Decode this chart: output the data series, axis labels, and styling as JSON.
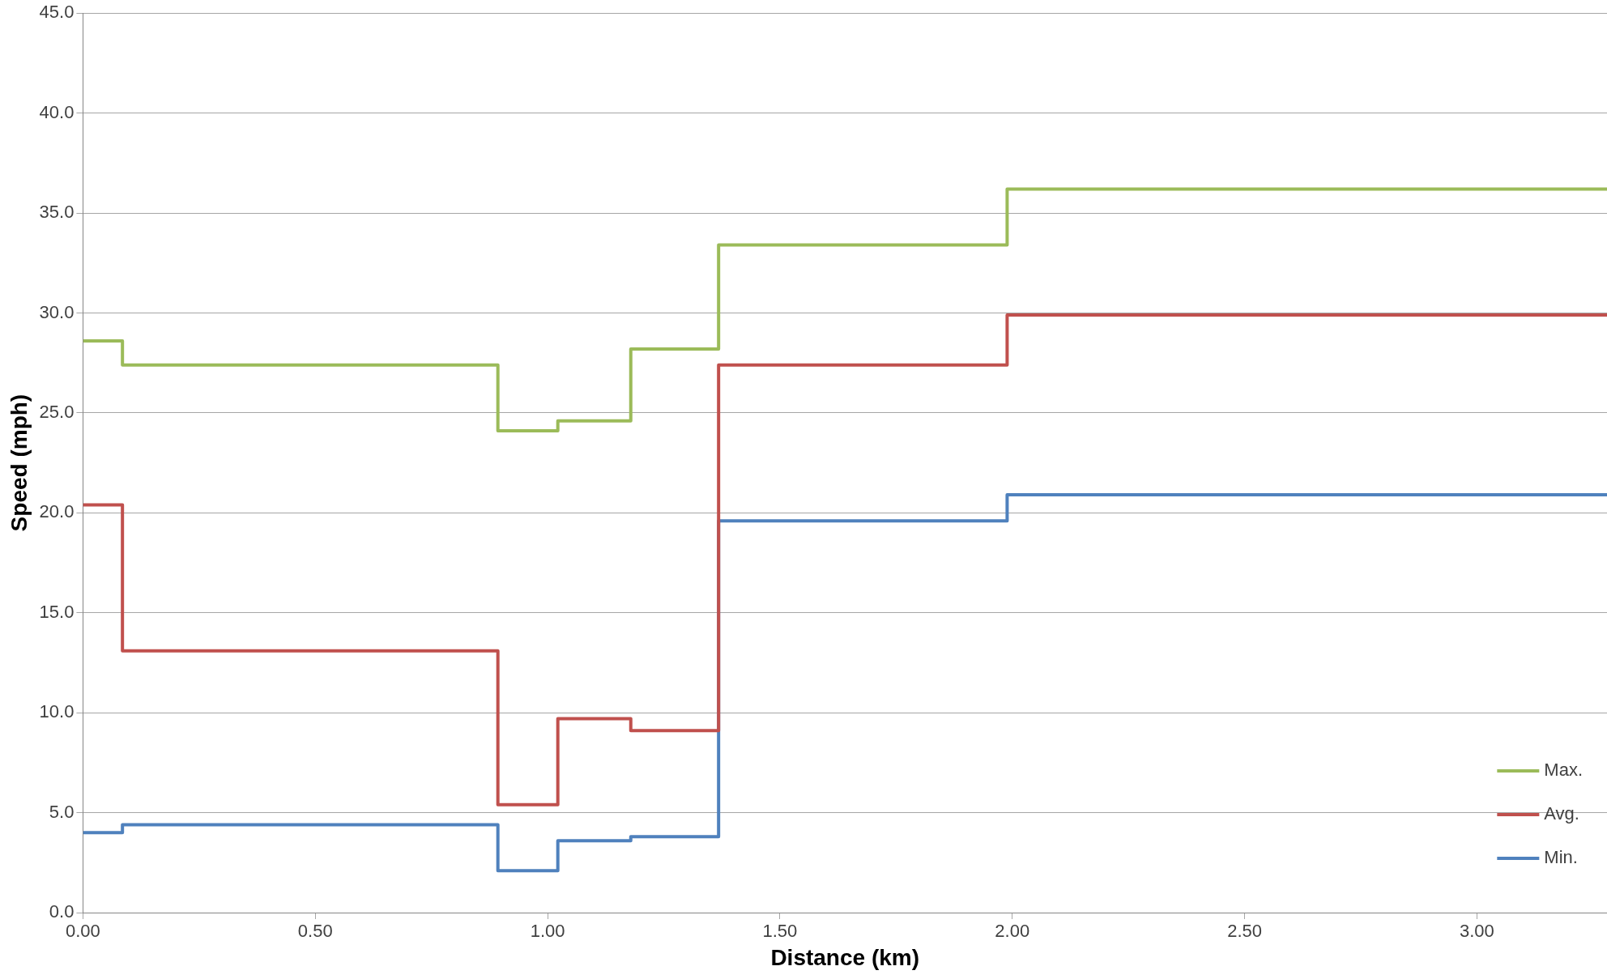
{
  "chart_data": {
    "type": "step",
    "xlabel": "Distance (km)",
    "ylabel": "Speed (mph)",
    "x": [
      0,
      0.085,
      0.893,
      1.022,
      1.179,
      1.368,
      1.989,
      3.28
    ],
    "series": [
      {
        "name": "Max.",
        "color": "#9bbb59",
        "values": [
          28.6,
          27.4,
          24.1,
          24.6,
          28.2,
          33.4,
          36.2,
          36.2
        ]
      },
      {
        "name": "Avg.",
        "color": "#c0504d",
        "values": [
          20.4,
          13.1,
          5.4,
          9.7,
          9.1,
          27.4,
          29.9,
          29.9
        ]
      },
      {
        "name": "Min.",
        "color": "#4f81bd",
        "values": [
          4.0,
          4.4,
          2.1,
          3.6,
          3.8,
          19.6,
          20.9,
          20.9
        ]
      }
    ],
    "xlim": [
      0,
      3.28
    ],
    "xticks": [
      {
        "value": 0,
        "label": "0.00"
      },
      {
        "value": 0.5,
        "label": "0.50"
      },
      {
        "value": 1,
        "label": "1.00"
      },
      {
        "value": 1.5,
        "label": "1.50"
      },
      {
        "value": 2,
        "label": "2.00"
      },
      {
        "value": 2.5,
        "label": "2.50"
      },
      {
        "value": 3,
        "label": "3.00"
      }
    ],
    "ylim": [
      0,
      45
    ],
    "yticks": [
      {
        "value": 0,
        "label": "0.0"
      },
      {
        "value": 5,
        "label": "5.0"
      },
      {
        "value": 10,
        "label": "10.0"
      },
      {
        "value": 15,
        "label": "15.0"
      },
      {
        "value": 20,
        "label": "20.0"
      },
      {
        "value": 25,
        "label": "25.0"
      },
      {
        "value": 30,
        "label": "30.0"
      },
      {
        "value": 35,
        "label": "35.0"
      },
      {
        "value": 40,
        "label": "40.0"
      },
      {
        "value": 45,
        "label": "45.0"
      }
    ],
    "grid": "y",
    "legend": "bottom right",
    "line_style": "solid",
    "marker": "none"
  }
}
